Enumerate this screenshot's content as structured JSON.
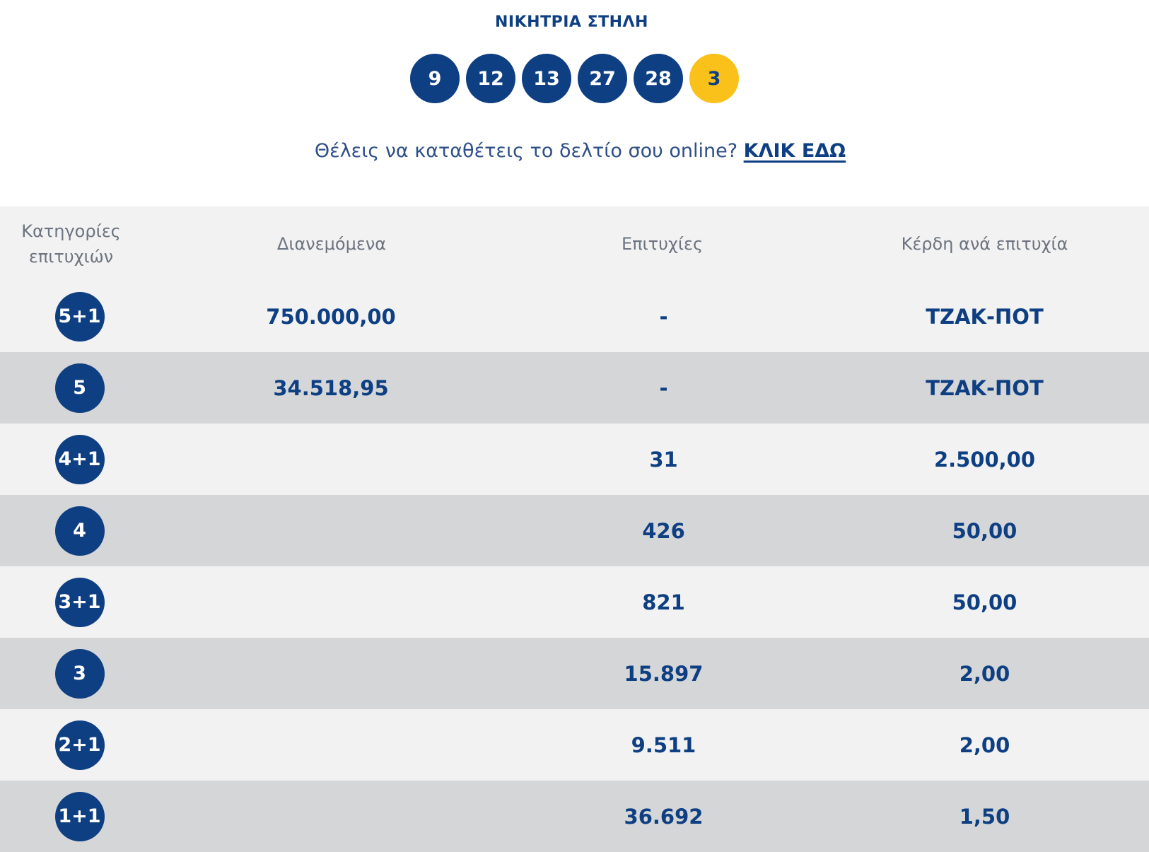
{
  "winning": {
    "title": "ΝΙΚΗΤΡΙΑ ΣΤΗΛΗ",
    "numbers": [
      "9",
      "12",
      "13",
      "27",
      "28"
    ],
    "joker": "3"
  },
  "cta": {
    "text": "Θέλεις να καταθέτεις το δελτίο σου online?",
    "link": "ΚΛΙΚ ΕΔΩ"
  },
  "table": {
    "headers": {
      "category_line1": "Κατηγορίες",
      "category_line2": "επιτυχιών",
      "distributed": "Διανεμόμενα",
      "winners": "Επιτυχίες",
      "prize": "Κέρδη ανά επιτυχία"
    },
    "rows": [
      {
        "category": "5+1",
        "distributed": "750.000,00",
        "winners": "-",
        "prize": "ΤΖΑΚ-ΠΟΤ"
      },
      {
        "category": "5",
        "distributed": "34.518,95",
        "winners": "-",
        "prize": "ΤΖΑΚ-ΠΟΤ"
      },
      {
        "category": "4+1",
        "distributed": "",
        "winners": "31",
        "prize": "2.500,00"
      },
      {
        "category": "4",
        "distributed": "",
        "winners": "426",
        "prize": "50,00"
      },
      {
        "category": "3+1",
        "distributed": "",
        "winners": "821",
        "prize": "50,00"
      },
      {
        "category": "3",
        "distributed": "",
        "winners": "15.897",
        "prize": "2,00"
      },
      {
        "category": "2+1",
        "distributed": "",
        "winners": "9.511",
        "prize": "2,00"
      },
      {
        "category": "1+1",
        "distributed": "",
        "winners": "36.692",
        "prize": "1,50"
      }
    ]
  },
  "colors": {
    "primary": "#0e3f82",
    "joker": "#fbc11b",
    "row_light": "#f2f2f2",
    "row_dark": "#d5d6d8",
    "header_text": "#6c7480"
  }
}
